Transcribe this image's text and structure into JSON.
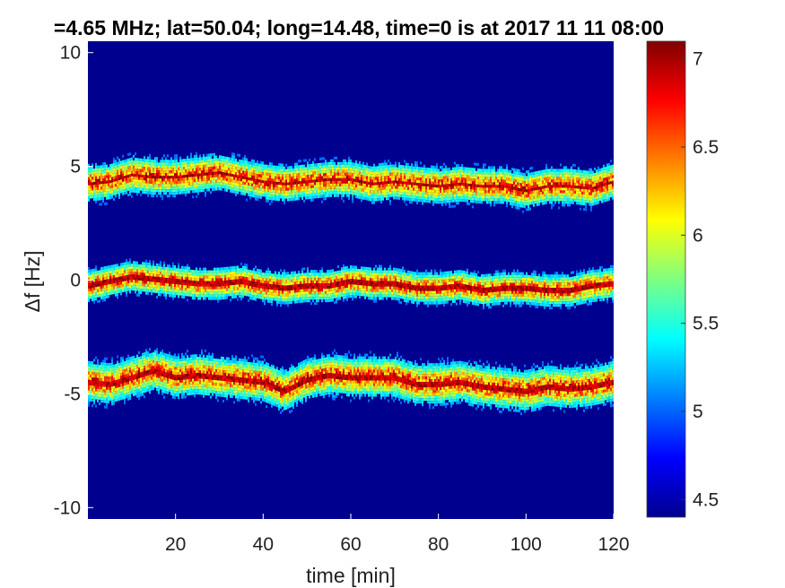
{
  "chart_data": {
    "type": "heatmap",
    "title": "=4.65 MHz;  lat=50.04; long=14.48, time=0 is at 2017 11 11 08:00",
    "xlabel": "time [min]",
    "ylabel": "Δf [Hz]",
    "xlim": [
      0,
      120
    ],
    "ylim": [
      -10.5,
      10.5
    ],
    "x_ticks": [
      20,
      40,
      60,
      80,
      100,
      120
    ],
    "y_ticks": [
      -10,
      -5,
      0,
      5,
      10
    ],
    "y_tick_labels": [
      "-10",
      "-5",
      "0",
      "5",
      "10"
    ],
    "colorbar": {
      "colormap": "jet",
      "clim": [
        4.4,
        7.1
      ],
      "ticks": [
        4.5,
        5,
        5.5,
        6,
        6.5,
        7
      ],
      "tick_labels": [
        "4.5",
        "5",
        "5.5",
        "6",
        "6.5",
        "7"
      ]
    },
    "background_color": "#00008f",
    "bands": [
      {
        "center_trace": [
          [
            0,
            4.3
          ],
          [
            5,
            4.4
          ],
          [
            10,
            4.7
          ],
          [
            15,
            4.6
          ],
          [
            20,
            4.6
          ],
          [
            25,
            4.7
          ],
          [
            30,
            4.8
          ],
          [
            35,
            4.6
          ],
          [
            40,
            4.4
          ],
          [
            45,
            4.3
          ],
          [
            50,
            4.4
          ],
          [
            55,
            4.5
          ],
          [
            60,
            4.5
          ],
          [
            65,
            4.3
          ],
          [
            70,
            4.4
          ],
          [
            75,
            4.3
          ],
          [
            80,
            4.2
          ],
          [
            85,
            4.3
          ],
          [
            90,
            4.2
          ],
          [
            95,
            4.2
          ],
          [
            100,
            4.0
          ],
          [
            105,
            4.2
          ],
          [
            110,
            4.2
          ],
          [
            115,
            4.1
          ],
          [
            120,
            4.4
          ]
        ],
        "spread_hz": 0.8
      },
      {
        "center_trace": [
          [
            0,
            -0.2
          ],
          [
            5,
            0.0
          ],
          [
            10,
            0.2
          ],
          [
            15,
            0.1
          ],
          [
            20,
            0.0
          ],
          [
            25,
            -0.1
          ],
          [
            30,
            -0.1
          ],
          [
            35,
            0.0
          ],
          [
            40,
            -0.2
          ],
          [
            45,
            -0.3
          ],
          [
            50,
            -0.2
          ],
          [
            55,
            -0.2
          ],
          [
            60,
            0.0
          ],
          [
            65,
            -0.1
          ],
          [
            70,
            -0.1
          ],
          [
            75,
            -0.3
          ],
          [
            80,
            -0.3
          ],
          [
            85,
            -0.2
          ],
          [
            90,
            -0.4
          ],
          [
            95,
            -0.3
          ],
          [
            100,
            -0.3
          ],
          [
            105,
            -0.4
          ],
          [
            110,
            -0.4
          ],
          [
            115,
            -0.2
          ],
          [
            120,
            -0.1
          ]
        ],
        "spread_hz": 0.7
      },
      {
        "center_trace": [
          [
            0,
            -4.4
          ],
          [
            5,
            -4.5
          ],
          [
            10,
            -4.2
          ],
          [
            15,
            -3.9
          ],
          [
            20,
            -4.2
          ],
          [
            25,
            -4.1
          ],
          [
            30,
            -4.2
          ],
          [
            35,
            -4.3
          ],
          [
            40,
            -4.4
          ],
          [
            45,
            -4.8
          ],
          [
            50,
            -4.3
          ],
          [
            55,
            -4.1
          ],
          [
            60,
            -4.2
          ],
          [
            65,
            -4.2
          ],
          [
            70,
            -4.2
          ],
          [
            75,
            -4.5
          ],
          [
            80,
            -4.5
          ],
          [
            85,
            -4.4
          ],
          [
            90,
            -4.6
          ],
          [
            95,
            -4.7
          ],
          [
            100,
            -4.8
          ],
          [
            105,
            -4.6
          ],
          [
            110,
            -4.7
          ],
          [
            115,
            -4.6
          ],
          [
            120,
            -4.4
          ]
        ],
        "spread_hz": 0.9
      }
    ]
  }
}
